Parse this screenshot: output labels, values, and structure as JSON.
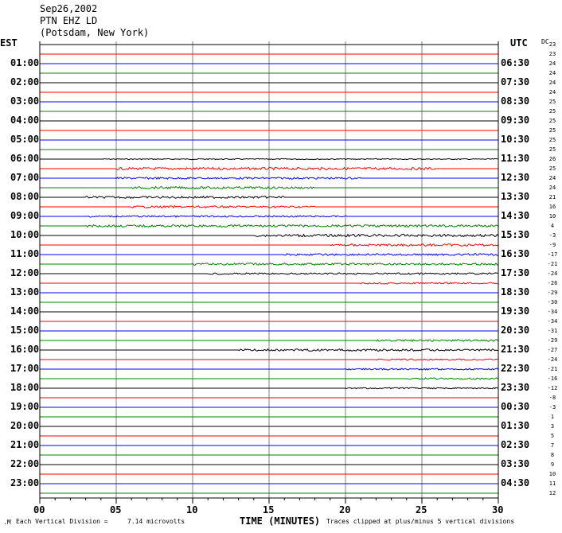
{
  "header": {
    "date": "Sep26,2002",
    "station": "PTN EHZ LD",
    "location": "(Potsdam, New York)"
  },
  "left_timezone": "EST",
  "right_timezone": "UTC",
  "dc_header": "DC",
  "left_labels": [
    "01:00",
    "02:00",
    "03:00",
    "04:00",
    "05:00",
    "06:00",
    "07:00",
    "08:00",
    "09:00",
    "10:00",
    "11:00",
    "12:00",
    "13:00",
    "14:00",
    "15:00",
    "16:00",
    "17:00",
    "18:00",
    "19:00",
    "20:00",
    "21:00",
    "22:00",
    "23:00"
  ],
  "right_labels": [
    "06:30",
    "07:30",
    "08:30",
    "09:30",
    "10:30",
    "11:30",
    "12:30",
    "13:30",
    "14:30",
    "15:30",
    "16:30",
    "17:30",
    "18:30",
    "19:30",
    "20:30",
    "21:30",
    "22:30",
    "23:30",
    "00:30",
    "01:30",
    "02:30",
    "03:30",
    "04:30"
  ],
  "dc_values": [
    "23",
    "23",
    "24",
    "24",
    "24",
    "24",
    "25",
    "25",
    "25",
    "25",
    "25",
    "25",
    "26",
    "25",
    "24",
    "24",
    "21",
    "16",
    "10",
    "4",
    "-3",
    "-9",
    "-17",
    "-21",
    "-24",
    "-26",
    "-29",
    "-30",
    "-34",
    "-34",
    "-31",
    "-29",
    "-27",
    "-24",
    "-21",
    "-16",
    "-12",
    "-8",
    "-3",
    "1",
    "3",
    "5",
    "7",
    "8",
    "9",
    "10",
    "11",
    "12"
  ],
  "footer": {
    "vertical_division_label": "Each Vertical Division =",
    "vertical_division_value": "7.14 microvolts",
    "clip_note": "Traces clipped at plus/minus 5 vertical divisions"
  },
  "colors": {
    "trace_cycle": [
      "#000000",
      "#ff0000",
      "#0000ff",
      "#008000"
    ],
    "grid": "#000000",
    "vertical_grid": "#808080"
  },
  "chart_data": {
    "type": "line",
    "title": "",
    "xlabel": "TIME (MINUTES)",
    "ylabel": "",
    "x_ticks": [
      "00",
      "05",
      "10",
      "15",
      "20",
      "25",
      "30"
    ],
    "xlim": [
      0,
      30
    ],
    "trace_count": 48,
    "trace_minutes": 30,
    "activity": [
      {
        "trace": 12,
        "start_min": 4,
        "end_min": 30,
        "level": 0.6
      },
      {
        "trace": 13,
        "start_min": 5,
        "end_min": 26,
        "level": 1.5
      },
      {
        "trace": 14,
        "start_min": 5,
        "end_min": 21,
        "level": 1.2
      },
      {
        "trace": 15,
        "start_min": 6,
        "end_min": 18,
        "level": 1.4
      },
      {
        "trace": 16,
        "start_min": 3,
        "end_min": 16,
        "level": 1.3
      },
      {
        "trace": 17,
        "start_min": 6,
        "end_min": 18,
        "level": 1.2
      },
      {
        "trace": 18,
        "start_min": 3,
        "end_min": 20,
        "level": 1.0
      },
      {
        "trace": 19,
        "start_min": 3,
        "end_min": 30,
        "level": 1.4
      },
      {
        "trace": 20,
        "start_min": 14,
        "end_min": 30,
        "level": 1.5
      },
      {
        "trace": 21,
        "start_min": 19,
        "end_min": 30,
        "level": 1.4
      },
      {
        "trace": 22,
        "start_min": 16,
        "end_min": 30,
        "level": 1.2
      },
      {
        "trace": 23,
        "start_min": 10,
        "end_min": 30,
        "level": 1.3
      },
      {
        "trace": 24,
        "start_min": 11,
        "end_min": 30,
        "level": 1.0
      },
      {
        "trace": 25,
        "start_min": 21,
        "end_min": 30,
        "level": 1.0
      },
      {
        "trace": 31,
        "start_min": 22,
        "end_min": 30,
        "level": 1.2
      },
      {
        "trace": 32,
        "start_min": 13,
        "end_min": 30,
        "level": 1.3
      },
      {
        "trace": 33,
        "start_min": 22,
        "end_min": 30,
        "level": 0.9
      },
      {
        "trace": 34,
        "start_min": 20,
        "end_min": 30,
        "level": 1.0
      },
      {
        "trace": 35,
        "start_min": 24,
        "end_min": 30,
        "level": 1.0
      },
      {
        "trace": 36,
        "start_min": 20,
        "end_min": 30,
        "level": 0.8
      }
    ]
  }
}
